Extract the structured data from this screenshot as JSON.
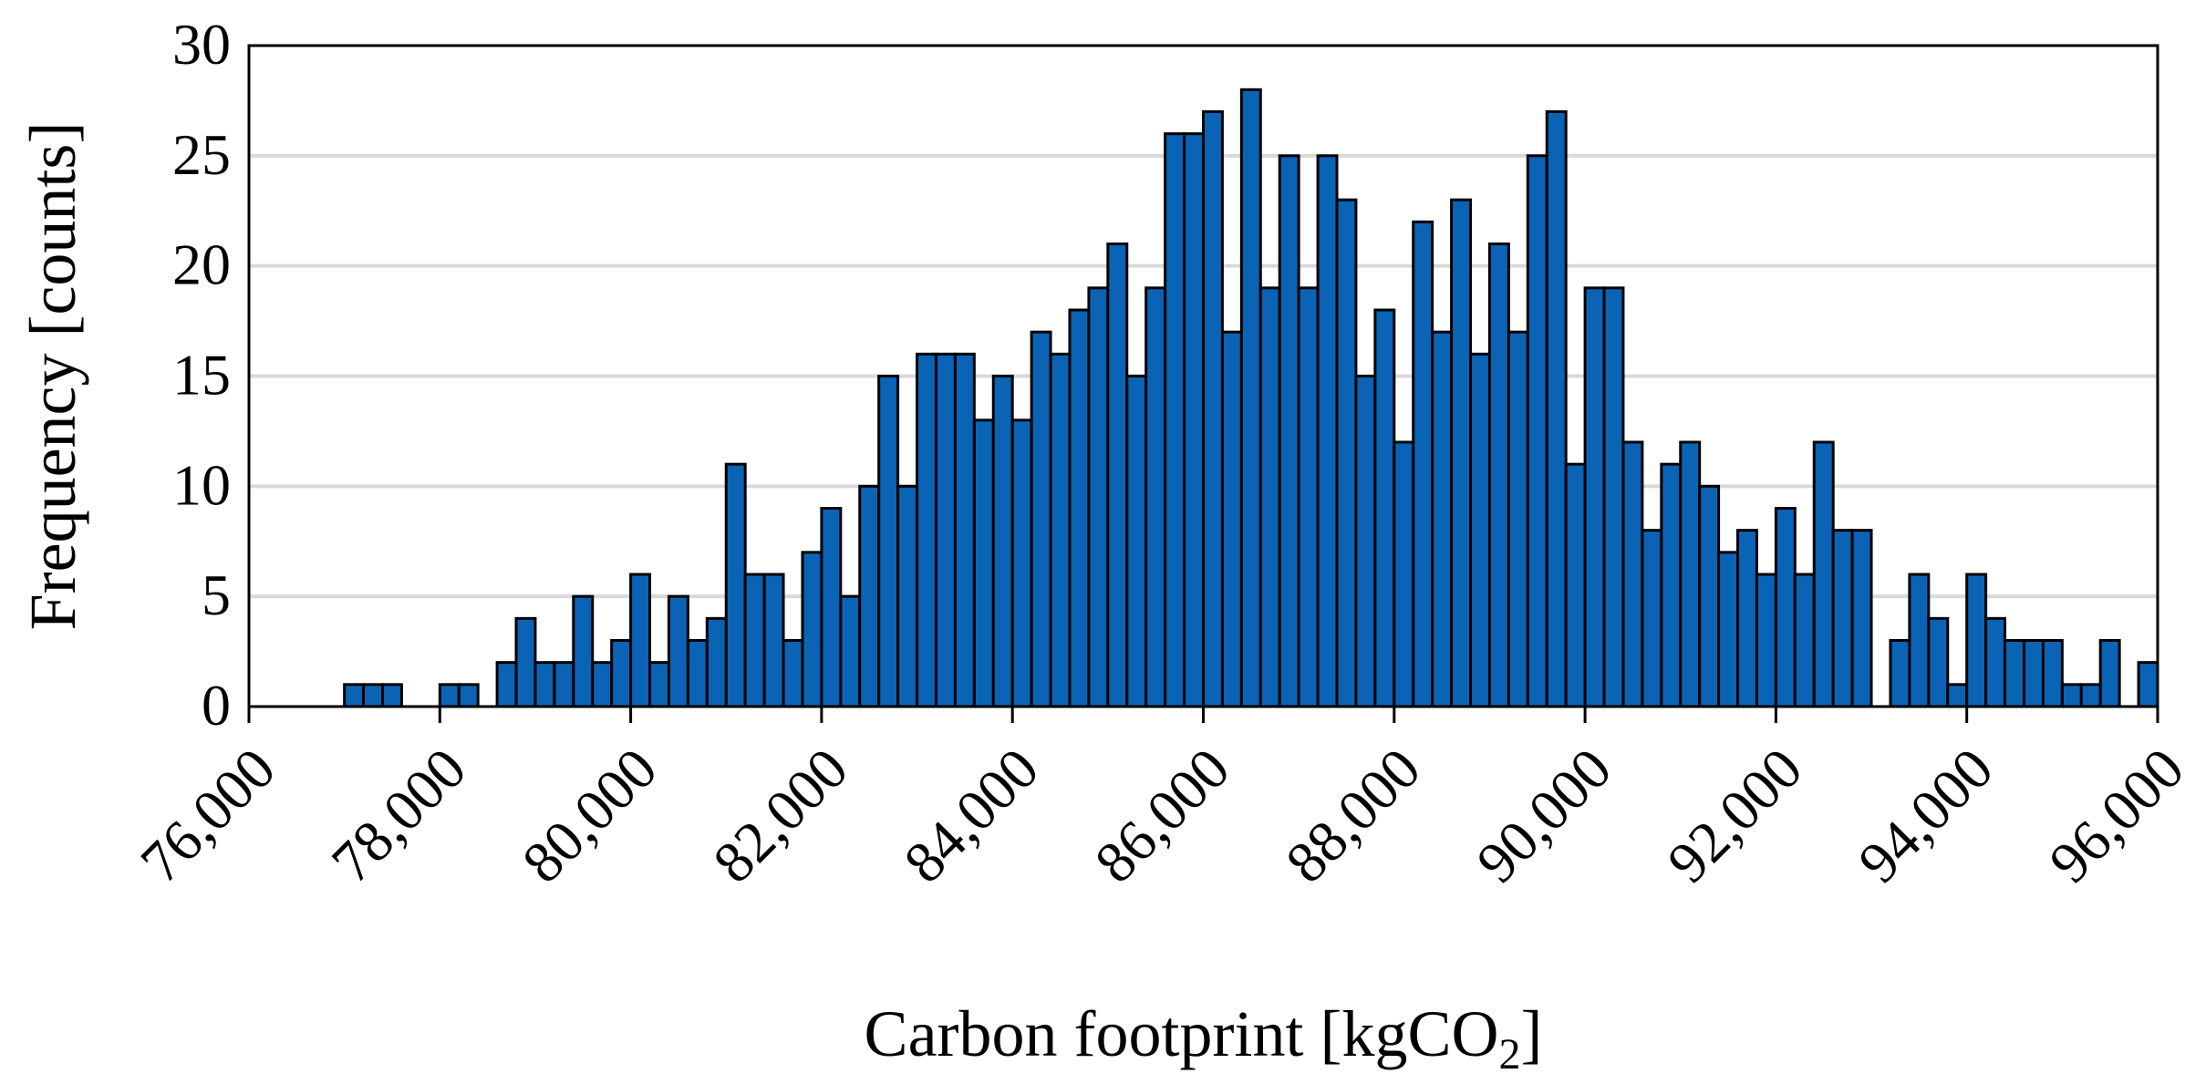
{
  "chart_data": {
    "type": "bar",
    "title": "",
    "xlabel": "Carbon footprint [kgCO",
    "xlabel_subscript": "2",
    "xlabel_suffix": "]",
    "ylabel": "Frequency [counts]",
    "xlim": [
      76000,
      96000
    ],
    "ylim": [
      0,
      30
    ],
    "x_tick_values": [
      76000,
      78000,
      80000,
      82000,
      84000,
      86000,
      88000,
      90000,
      92000,
      94000,
      96000
    ],
    "x_tick_labels": [
      "76,000",
      "78,000",
      "80,000",
      "82,000",
      "84,000",
      "86,000",
      "88,000",
      "90,000",
      "92,000",
      "94,000",
      "96,000"
    ],
    "y_tick_values": [
      0,
      5,
      10,
      15,
      20,
      25,
      30
    ],
    "y_tick_labels": [
      "0",
      "5",
      "10",
      "15",
      "20",
      "25",
      "30"
    ],
    "bin_start": 76000,
    "bin_width": 200,
    "values": [
      0,
      0,
      0,
      0,
      0,
      1,
      1,
      1,
      0,
      0,
      1,
      1,
      0,
      2,
      4,
      2,
      2,
      5,
      2,
      3,
      6,
      2,
      5,
      3,
      4,
      11,
      6,
      6,
      3,
      7,
      9,
      5,
      10,
      15,
      10,
      16,
      16,
      16,
      13,
      15,
      13,
      17,
      16,
      18,
      19,
      21,
      15,
      19,
      26,
      26,
      27,
      17,
      28,
      19,
      25,
      19,
      25,
      23,
      15,
      18,
      12,
      22,
      17,
      23,
      16,
      21,
      17,
      25,
      27,
      11,
      19,
      19,
      12,
      8,
      11,
      12,
      10,
      7,
      8,
      6,
      9,
      6,
      12,
      8,
      8,
      0,
      3,
      6,
      4,
      1,
      6,
      4,
      3,
      3,
      3,
      1,
      1,
      3,
      0,
      2
    ],
    "grid": true,
    "legend": "none",
    "colors": {
      "bar_fill": "#0b63b5",
      "bar_edge": "#000000",
      "grid": "#d9d9d9",
      "axis": "#000000"
    }
  }
}
